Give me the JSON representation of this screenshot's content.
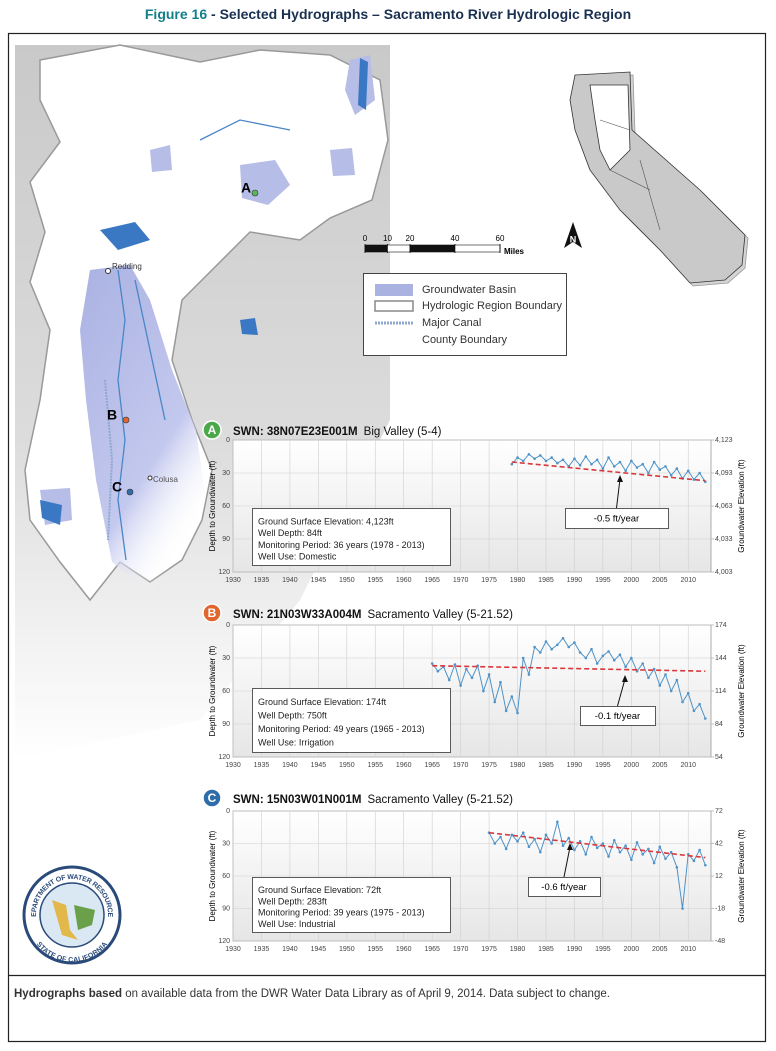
{
  "figure": {
    "number": "Figure 16",
    "title": " - Selected Hydrographs – Sacramento River Hydrologic Region"
  },
  "map": {
    "sites": [
      "A",
      "B",
      "C"
    ],
    "cities": [
      "Redding",
      "Colusa"
    ],
    "scale": {
      "ticks": [
        0,
        10,
        20,
        40,
        60
      ],
      "unit": "Miles"
    },
    "legend": [
      "Groundwater Basin",
      "Hydrologic Region Boundary",
      "Major Canal",
      "County Boundary"
    ]
  },
  "chart_data": [
    {
      "type": "line",
      "marker": "A",
      "marker_color": "#4aa74a",
      "title": "SWN: 38N07E23E001M",
      "subtitle": "Big Valley (5-4)",
      "ylabel": "Depth to Groundwater (ft)",
      "y2label": "Groundwater Elevation (ft)",
      "xlim": [
        1930,
        2014
      ],
      "xticks": [
        1930,
        1935,
        1940,
        1945,
        1950,
        1955,
        1960,
        1965,
        1970,
        1975,
        1980,
        1985,
        1990,
        1995,
        2000,
        2005,
        2010
      ],
      "ylim": [
        120,
        0
      ],
      "yticks": [
        0,
        30,
        60,
        90,
        120
      ],
      "y2lim": [
        4003,
        4123
      ],
      "y2ticks": [
        {
          "value": 4003,
          "label": "4,003"
        },
        {
          "value": 4033,
          "label": "4,033"
        },
        {
          "value": 4063,
          "label": "4,063"
        },
        {
          "value": 4093,
          "label": "4,093"
        },
        {
          "value": 4123,
          "label": "4,123"
        }
      ],
      "grid": true,
      "series": [
        {
          "color": "#4f93c8",
          "x": [
            1979,
            1980,
            1981,
            1982,
            1983,
            1984,
            1985,
            1986,
            1987,
            1988,
            1989,
            1990,
            1991,
            1992,
            1993,
            1994,
            1995,
            1996,
            1997,
            1998,
            1999,
            2000,
            2001,
            2002,
            2003,
            2004,
            2005,
            2006,
            2007,
            2008,
            2009,
            2010,
            2011,
            2012,
            2013
          ],
          "values": [
            22,
            16,
            19,
            13,
            17,
            14,
            19,
            16,
            21,
            18,
            24,
            17,
            23,
            15,
            22,
            18,
            26,
            16,
            24,
            20,
            28,
            19,
            25,
            22,
            30,
            20,
            27,
            24,
            32,
            26,
            35,
            28,
            36,
            30,
            38
          ]
        },
        {
          "color": "#d9373a",
          "dashed": true,
          "x": [
            1979,
            2013
          ],
          "values": [
            20,
            37
          ]
        }
      ],
      "annotation": "-0.5 ft/year",
      "info": [
        "Ground Surface Elevation: 4,123ft",
        "Well Depth: 84ft",
        "Monitoring Period: 36 years (1978 - 2013)",
        "Well Use: Domestic"
      ]
    },
    {
      "type": "line",
      "marker": "B",
      "marker_color": "#e0662e",
      "title": "SWN: 21N03W33A004M",
      "subtitle": "Sacramento Valley (5-21.52)",
      "ylabel": "Depth to Groundwater (ft)",
      "y2label": "Groundwater Elevation (ft)",
      "xlim": [
        1930,
        2014
      ],
      "xticks": [
        1930,
        1935,
        1940,
        1945,
        1950,
        1955,
        1960,
        1965,
        1970,
        1975,
        1980,
        1985,
        1990,
        1995,
        2000,
        2005,
        2010
      ],
      "ylim": [
        120,
        0
      ],
      "yticks": [
        0,
        30,
        60,
        90,
        120
      ],
      "y2lim": [
        54,
        174
      ],
      "y2ticks": [
        54,
        84,
        114,
        144,
        174
      ],
      "grid": true,
      "series": [
        {
          "color": "#4f93c8",
          "x": [
            1965,
            1966,
            1967,
            1968,
            1969,
            1970,
            1971,
            1972,
            1973,
            1974,
            1975,
            1976,
            1977,
            1978,
            1979,
            1980,
            1981,
            1982,
            1983,
            1984,
            1985,
            1986,
            1987,
            1988,
            1989,
            1990,
            1991,
            1992,
            1993,
            1994,
            1995,
            1996,
            1997,
            1998,
            1999,
            2000,
            2001,
            2002,
            2003,
            2004,
            2005,
            2006,
            2007,
            2008,
            2009,
            2010,
            2011,
            2012,
            2013
          ],
          "values": [
            35,
            42,
            38,
            50,
            36,
            55,
            40,
            48,
            37,
            60,
            45,
            70,
            52,
            78,
            65,
            80,
            30,
            45,
            20,
            25,
            15,
            22,
            18,
            12,
            20,
            16,
            25,
            30,
            22,
            35,
            28,
            24,
            32,
            27,
            38,
            30,
            42,
            35,
            48,
            40,
            55,
            45,
            60,
            50,
            70,
            62,
            78,
            72,
            85
          ]
        },
        {
          "color": "#d9373a",
          "dashed": true,
          "x": [
            1965,
            2013
          ],
          "values": [
            37,
            42
          ]
        }
      ],
      "annotation": "-0.1 ft/year",
      "info": [
        "Ground Surface Elevation: 174ft",
        "Well Depth: 750ft",
        "Monitoring Period: 49 years (1965 - 2013)",
        "Well Use: Irrigation"
      ]
    },
    {
      "type": "line",
      "marker": "C",
      "marker_color": "#2f6da8",
      "title": "SWN: 15N03W01N001M",
      "subtitle": "Sacramento Valley (5-21.52)",
      "ylabel": "Depth to Groundwater (ft)",
      "y2label": "Groundwater Elevation (ft)",
      "xlim": [
        1930,
        2014
      ],
      "xticks": [
        1930,
        1935,
        1940,
        1945,
        1950,
        1955,
        1960,
        1965,
        1970,
        1975,
        1980,
        1985,
        1990,
        1995,
        2000,
        2005,
        2010
      ],
      "ylim": [
        120,
        0
      ],
      "yticks": [
        0,
        30,
        60,
        90,
        120
      ],
      "y2lim": [
        -48,
        72
      ],
      "y2ticks": [
        -48,
        -18,
        12,
        42,
        72
      ],
      "grid": true,
      "series": [
        {
          "color": "#4f93c8",
          "x": [
            1975,
            1976,
            1977,
            1978,
            1979,
            1980,
            1981,
            1982,
            1983,
            1984,
            1985,
            1986,
            1987,
            1988,
            1989,
            1990,
            1991,
            1992,
            1993,
            1994,
            1995,
            1996,
            1997,
            1998,
            1999,
            2000,
            2001,
            2002,
            2003,
            2004,
            2005,
            2006,
            2007,
            2008,
            2009,
            2010,
            2011,
            2012,
            2013
          ],
          "values": [
            20,
            30,
            24,
            35,
            22,
            28,
            20,
            33,
            26,
            38,
            22,
            30,
            10,
            32,
            25,
            36,
            28,
            40,
            24,
            34,
            30,
            42,
            27,
            38,
            32,
            45,
            29,
            40,
            35,
            48,
            33,
            44,
            38,
            52,
            90,
            40,
            46,
            36,
            50
          ]
        },
        {
          "color": "#d9373a",
          "dashed": true,
          "x": [
            1975,
            2013
          ],
          "values": [
            20,
            43
          ]
        }
      ],
      "annotation": "-0.6 ft/year",
      "info": [
        "Ground Surface Elevation: 72ft",
        "Well Depth: 283ft",
        "Monitoring Period: 39 years (1975 - 2013)",
        "Well Use: Industrial"
      ]
    }
  ],
  "seal": {
    "top": "DEPARTMENT OF WATER RESOURCES",
    "bottom": "STATE OF CALIFORNIA"
  },
  "footer": {
    "bold": "Hydrographs based",
    "text": " on available data from the DWR Water Data Library as of April 9, 2014.  Data subject to change."
  }
}
